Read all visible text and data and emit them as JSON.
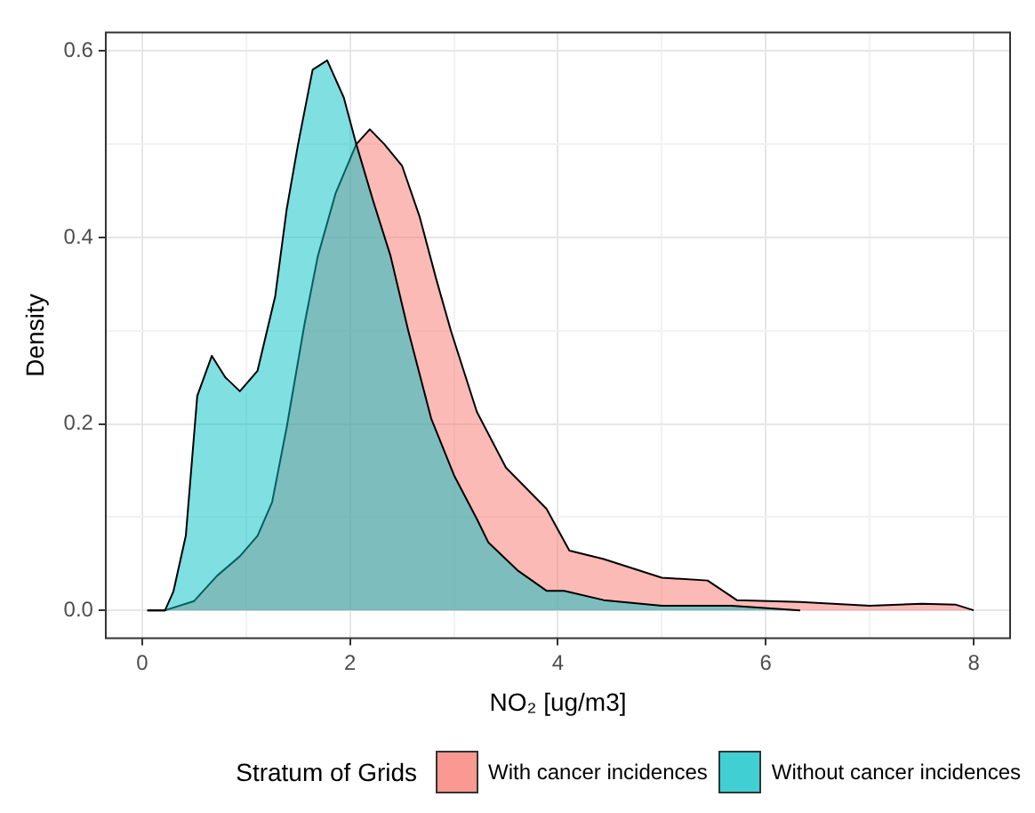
{
  "chart_data": {
    "type": "area",
    "xlabel": "NO₂ [ug/m3]",
    "ylabel": "Density",
    "legend_title": "Stratum of Grids",
    "legend": "bottom",
    "grid": true,
    "xlim": [
      -0.35,
      8.35
    ],
    "xticks": [
      0,
      {
        "value": 1,
        "label": null
      },
      2,
      {
        "value": 3,
        "label": null
      },
      4,
      {
        "value": 5,
        "label": null
      },
      6,
      {
        "value": 7,
        "label": null
      },
      8
    ],
    "ylim": [
      -0.03,
      0.62
    ],
    "yticks": [
      {
        "value": 0,
        "label": "0.0"
      },
      {
        "value": 0.1,
        "label": null
      },
      0.2,
      {
        "value": 0.3,
        "label": null
      },
      0.4,
      {
        "value": 0.5,
        "label": null
      },
      0.6
    ],
    "series": [
      {
        "name": "Without cancer incidences",
        "color": "#00bfc4",
        "x": [
          0.05,
          0.22,
          0.3,
          0.42,
          0.53,
          0.67,
          0.8,
          0.94,
          1.11,
          1.28,
          1.39,
          1.5,
          1.64,
          1.78,
          1.94,
          2.06,
          2.22,
          2.39,
          2.56,
          2.78,
          3,
          3.22,
          3.33,
          3.61,
          3.89,
          4.06,
          4.44,
          5,
          5.67,
          6.33
        ],
        "values": [
          0,
          0,
          0.02,
          0.08,
          0.23,
          0.273,
          0.25,
          0.235,
          0.257,
          0.337,
          0.43,
          0.5,
          0.58,
          0.59,
          0.55,
          0.5,
          0.44,
          0.38,
          0.3,
          0.206,
          0.145,
          0.098,
          0.073,
          0.043,
          0.021,
          0.021,
          0.011,
          0.005,
          0.005,
          0
        ]
      },
      {
        "name": "With cancer incidences",
        "color": "#f8766d",
        "x": [
          0.05,
          0.22,
          0.5,
          0.72,
          0.94,
          1.11,
          1.25,
          1.39,
          1.56,
          1.69,
          1.86,
          2.06,
          2.19,
          2.33,
          2.5,
          2.67,
          2.83,
          2.97,
          3.22,
          3.5,
          3.89,
          4.11,
          4.44,
          5,
          5.44,
          5.72,
          6.33,
          7,
          7.5,
          7.83,
          8
        ],
        "values": [
          0,
          0,
          0.01,
          0.037,
          0.058,
          0.08,
          0.116,
          0.196,
          0.306,
          0.38,
          0.447,
          0.5,
          0.516,
          0.5,
          0.477,
          0.422,
          0.355,
          0.3,
          0.213,
          0.153,
          0.109,
          0.064,
          0.055,
          0.035,
          0.032,
          0.011,
          0.009,
          0.005,
          0.007,
          0.006,
          0
        ]
      }
    ]
  }
}
